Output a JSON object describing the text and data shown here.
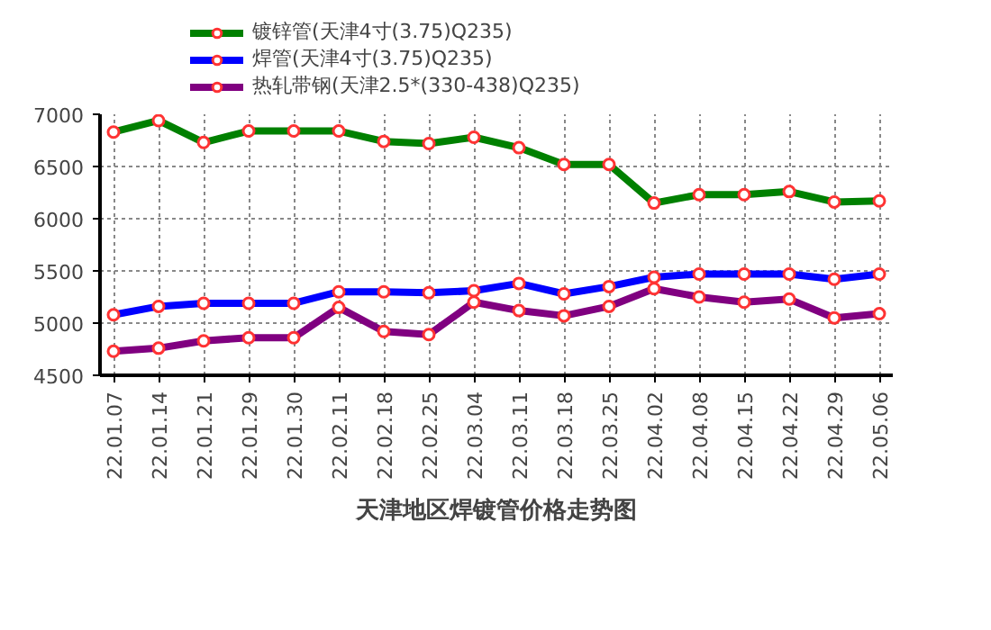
{
  "chart_data": {
    "type": "line",
    "title": "天津地区焊镀管价格走势图",
    "categories": [
      "22.01.07",
      "22.01.14",
      "22.01.21",
      "22.01.29",
      "22.01.30",
      "22.02.11",
      "22.02.18",
      "22.02.25",
      "22.03.04",
      "22.03.11",
      "22.03.18",
      "22.03.25",
      "22.04.02",
      "22.04.08",
      "22.04.15",
      "22.04.22",
      "22.04.29",
      "22.05.06"
    ],
    "series": [
      {
        "name": "镀锌管(天津4寸(3.75)Q235)",
        "color": "#008000",
        "values": [
          6830,
          6940,
          6730,
          6840,
          6840,
          6840,
          6740,
          6720,
          6780,
          6680,
          6520,
          6520,
          6150,
          6230,
          6230,
          6260,
          6160,
          6170
        ]
      },
      {
        "name": "焊管(天津4寸(3.75)Q235)",
        "color": "#0000ff",
        "values": [
          5080,
          5160,
          5190,
          5190,
          5190,
          5300,
          5300,
          5290,
          5310,
          5380,
          5280,
          5350,
          5440,
          5470,
          5470,
          5470,
          5420,
          5470
        ]
      },
      {
        "name": "热轧带钢(天津2.5*(330-438)Q235)",
        "color": "#800080",
        "values": [
          4730,
          4760,
          4830,
          4860,
          4860,
          5150,
          4920,
          4890,
          5200,
          5120,
          5070,
          5160,
          5330,
          5250,
          5200,
          5230,
          5050,
          5090
        ]
      }
    ],
    "ylim": [
      4500,
      7000
    ],
    "yticks": [
      4500,
      5000,
      5500,
      6000,
      6500,
      7000
    ],
    "grid": true,
    "legend": "top",
    "marker": "circle",
    "line_style": "solid"
  }
}
